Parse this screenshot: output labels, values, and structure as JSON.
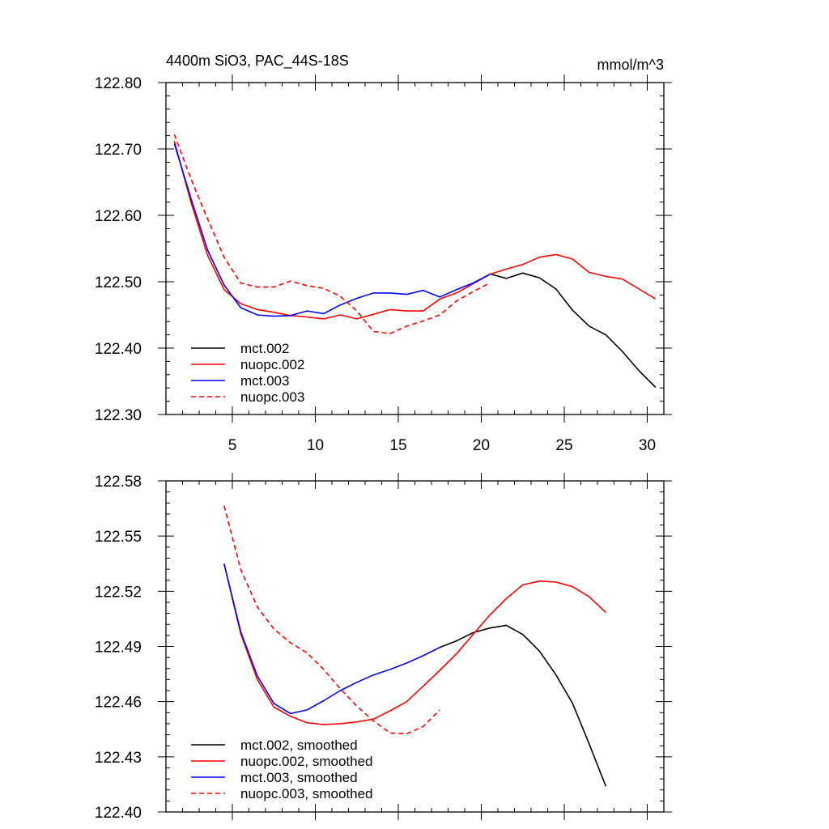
{
  "title_left": "4400m SiO3, PAC_44S-18S",
  "title_right": "mmol/m^3",
  "chart_data": [
    {
      "type": "line",
      "panel": "top",
      "xlim": [
        1,
        31
      ],
      "ylim": [
        122.3,
        122.8
      ],
      "xticks": [
        5,
        10,
        15,
        20,
        25,
        30
      ],
      "xtick_labels": [
        "5",
        "10",
        "15",
        "20",
        "25",
        "30"
      ],
      "yticks": [
        122.3,
        122.4,
        122.5,
        122.6,
        122.7,
        122.8
      ],
      "ytick_labels": [
        "122.30",
        "122.40",
        "122.50",
        "122.60",
        "122.70",
        "122.80"
      ],
      "legend_position": "bottom-left",
      "series": [
        {
          "name": "mct.002",
          "color": "#000000",
          "dash": "solid",
          "x": [
            20.5,
            21.5,
            22.5,
            23.5,
            24.5,
            25.5,
            26.5,
            27.5,
            28.5,
            29.5,
            30.5
          ],
          "y": [
            122.512,
            122.505,
            122.513,
            122.506,
            122.489,
            122.457,
            122.433,
            122.42,
            122.395,
            122.366,
            122.341
          ]
        },
        {
          "name": "nuopc.002",
          "color": "#ff0000",
          "dash": "solid",
          "x": [
            1.5,
            2.5,
            3.5,
            4.5,
            5.5,
            6.5,
            7.5,
            8.5,
            9.5,
            10.5,
            11.5,
            12.5,
            13.5,
            14.5,
            15.5,
            16.5,
            17.5,
            18.5,
            19.5,
            20.5,
            21.5,
            22.5,
            23.5,
            24.5,
            25.5,
            26.5,
            27.5,
            28.5,
            29.5,
            30.5
          ],
          "y": [
            122.712,
            122.62,
            122.54,
            122.488,
            122.467,
            122.458,
            122.454,
            122.449,
            122.447,
            122.444,
            122.45,
            122.444,
            122.451,
            122.458,
            122.456,
            122.456,
            122.474,
            122.483,
            122.497,
            122.511,
            122.519,
            122.526,
            122.537,
            122.541,
            122.534,
            122.514,
            122.508,
            122.504,
            122.489,
            122.474
          ]
        },
        {
          "name": "mct.003",
          "color": "#0000ff",
          "dash": "solid",
          "x": [
            1.5,
            2.5,
            3.5,
            4.5,
            5.5,
            6.5,
            7.5,
            8.5,
            9.5,
            10.5,
            11.5,
            12.5,
            13.5,
            14.5,
            15.5,
            16.5,
            17.5,
            18.5,
            19.5,
            20.5
          ],
          "y": [
            122.708,
            122.626,
            122.548,
            122.495,
            122.461,
            122.45,
            122.448,
            122.449,
            122.456,
            122.452,
            122.465,
            122.475,
            122.483,
            122.483,
            122.481,
            122.487,
            122.477,
            122.488,
            122.498,
            122.511
          ]
        },
        {
          "name": "nuopc.003",
          "color": "#ff0000",
          "dash": "dashed",
          "x": [
            1.5,
            2.5,
            3.5,
            4.5,
            5.5,
            6.5,
            7.5,
            8.5,
            9.5,
            10.5,
            11.5,
            12.5,
            13.5,
            14.5,
            15.5,
            16.5,
            17.5,
            18.5,
            19.5,
            20.5
          ],
          "y": [
            122.722,
            122.655,
            122.595,
            122.537,
            122.498,
            122.492,
            122.492,
            122.501,
            122.494,
            122.49,
            122.478,
            122.456,
            122.425,
            122.422,
            122.433,
            122.441,
            122.45,
            122.471,
            122.485,
            122.498
          ]
        }
      ]
    },
    {
      "type": "line",
      "panel": "bottom",
      "xlim": [
        1,
        31
      ],
      "ylim": [
        122.4,
        122.58
      ],
      "xticks": [
        5,
        10,
        15,
        20,
        25,
        30
      ],
      "yticks": [
        122.4,
        122.43,
        122.46,
        122.49,
        122.52,
        122.55,
        122.58
      ],
      "ytick_labels": [
        "122.40",
        "122.43",
        "122.46",
        "122.49",
        "122.52",
        "122.55",
        "122.58"
      ],
      "legend_position": "bottom-left",
      "series": [
        {
          "name": "mct.002, smoothed",
          "color": "#000000",
          "dash": "solid",
          "x": [
            17.5,
            18.5,
            19.5,
            20.5,
            21.5,
            22.5,
            23.5,
            24.5,
            25.5,
            26.5,
            27.5
          ],
          "y": [
            122.4895,
            122.493,
            122.4975,
            122.5,
            122.5015,
            122.4965,
            122.4875,
            122.4745,
            122.459,
            122.437,
            122.414
          ]
        },
        {
          "name": "nuopc.002, smoothed",
          "color": "#ff0000",
          "dash": "solid",
          "x": [
            4.5,
            5.5,
            6.5,
            7.5,
            8.5,
            9.5,
            10.5,
            11.5,
            12.5,
            13.5,
            14.5,
            15.5,
            16.5,
            17.5,
            18.5,
            19.5,
            20.5,
            21.5,
            22.5,
            23.5,
            24.5,
            25.5,
            26.5,
            27.5
          ],
          "y": [
            122.535,
            122.497,
            122.472,
            122.457,
            122.452,
            122.4485,
            122.4475,
            122.448,
            122.449,
            122.4505,
            122.455,
            122.46,
            122.4685,
            122.477,
            122.486,
            122.4965,
            122.507,
            122.516,
            122.5235,
            122.5255,
            122.525,
            122.5225,
            122.517,
            122.5085
          ]
        },
        {
          "name": "mct.003, smoothed",
          "color": "#0000ff",
          "dash": "solid",
          "x": [
            4.5,
            5.5,
            6.5,
            7.5,
            8.5,
            9.5,
            10.5,
            11.5,
            12.5,
            13.5,
            14.5,
            15.5,
            16.5,
            17.5
          ],
          "y": [
            122.535,
            122.498,
            122.474,
            122.459,
            122.4535,
            122.4555,
            122.4605,
            122.466,
            122.4705,
            122.4745,
            122.4775,
            122.481,
            122.485,
            122.4895
          ]
        },
        {
          "name": "nuopc.003, smoothed",
          "color": "#ff0000",
          "dash": "dashed",
          "x": [
            4.5,
            5.5,
            6.5,
            7.5,
            8.5,
            9.5,
            10.5,
            11.5,
            12.5,
            13.5,
            14.5,
            15.5,
            16.5,
            17.5
          ],
          "y": [
            122.5665,
            122.532,
            122.5115,
            122.4995,
            122.492,
            122.4865,
            122.4775,
            122.467,
            122.4575,
            122.4495,
            122.443,
            122.4425,
            122.4465,
            122.4555
          ]
        }
      ]
    }
  ]
}
